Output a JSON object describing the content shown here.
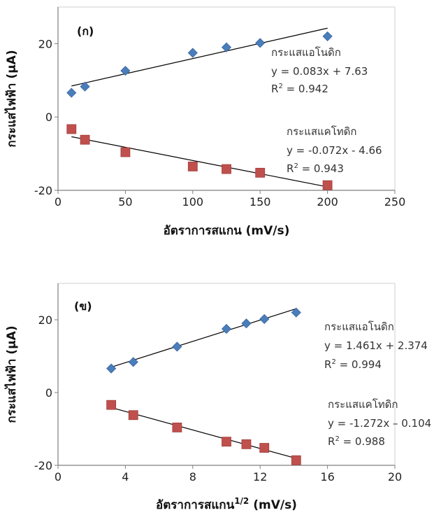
{
  "chart_data": [
    {
      "type": "scatter",
      "panel_label": "(ก)",
      "xlabel": "อัตราการสแกน (mV/s)",
      "xlabel_sup": "",
      "xlabel_suffix": "",
      "ylabel": "กระแสไฟฟ้า (µA)",
      "xlim": [
        0,
        250
      ],
      "ylim": [
        -20,
        30
      ],
      "xticks": [
        0,
        50,
        100,
        150,
        200,
        250
      ],
      "yticks": [
        -20,
        0,
        20
      ],
      "grid": false,
      "series": [
        {
          "name": "กระแสแอโนดิก",
          "marker": "diamond",
          "color": "#4a7ebb",
          "x": [
            10,
            20,
            50,
            100,
            125,
            150,
            200
          ],
          "y": [
            6.6,
            8.3,
            12.6,
            17.5,
            19.0,
            20.2,
            22.0
          ],
          "fit": {
            "slope": 0.083,
            "intercept": 7.63,
            "x_range": [
              10,
              200
            ]
          },
          "equation": "y = 0.083x + 7.63",
          "r2_label": "R",
          "r2_sup": "2",
          "r2_value": " = 0.942"
        },
        {
          "name": "กระแสแคโทดิก",
          "marker": "square",
          "color": "#c0504d",
          "x": [
            10,
            20,
            50,
            100,
            125,
            150,
            200
          ],
          "y": [
            -3.3,
            -6.2,
            -9.6,
            -13.5,
            -14.2,
            -15.2,
            -18.6
          ],
          "fit": {
            "slope": -0.072,
            "intercept": -4.66,
            "x_range": [
              10,
              200
            ]
          },
          "equation": "y = -0.072x - 4.66",
          "r2_label": "R",
          "r2_sup": "2",
          "r2_value": " = 0.943"
        }
      ]
    },
    {
      "type": "scatter",
      "panel_label": "(ข)",
      "xlabel": "อัตราการสแกน",
      "xlabel_sup": "1/2",
      "xlabel_suffix": " (mV/s)",
      "ylabel": "กระแสไฟฟ้า (µA)",
      "xlim": [
        0,
        20
      ],
      "ylim": [
        -20,
        30
      ],
      "xticks": [
        0,
        4,
        8,
        12,
        16,
        20
      ],
      "yticks": [
        -20,
        0,
        20
      ],
      "grid": false,
      "series": [
        {
          "name": "กระแสแอโนดิก",
          "marker": "diamond",
          "color": "#4a7ebb",
          "x": [
            3.16,
            4.47,
            7.07,
            10.0,
            11.18,
            12.25,
            14.14
          ],
          "y": [
            6.6,
            8.4,
            12.6,
            17.5,
            19.0,
            20.2,
            22.0
          ],
          "fit": {
            "slope": 1.461,
            "intercept": 2.374,
            "x_range": [
              3.16,
              14.14
            ]
          },
          "equation": "y = 1.461x + 2.374",
          "r2_label": "R",
          "r2_sup": "2",
          "r2_value": " = 0.994"
        },
        {
          "name": "กระแสแคโทดิก",
          "marker": "square",
          "color": "#c0504d",
          "x": [
            3.16,
            4.47,
            7.07,
            10.0,
            11.18,
            12.25,
            14.14
          ],
          "y": [
            -3.4,
            -6.2,
            -9.6,
            -13.5,
            -14.2,
            -15.2,
            -18.6
          ],
          "fit": {
            "slope": -1.272,
            "intercept": -0.104,
            "x_range": [
              3.16,
              14.14
            ]
          },
          "equation": "y = -1.272x – 0.104",
          "r2_label": "R",
          "r2_sup": "2",
          "r2_value": " = 0.988"
        }
      ]
    }
  ]
}
